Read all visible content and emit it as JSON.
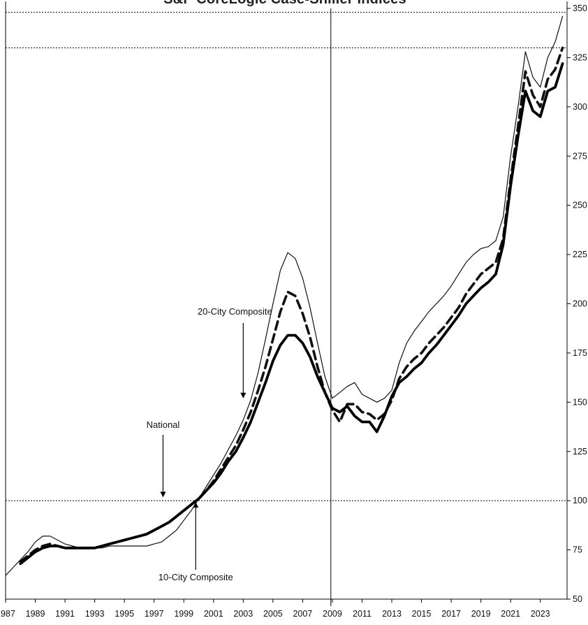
{
  "chart_data": {
    "type": "line",
    "title": "S&P CoreLogic Case-Shiller Indices",
    "ylim": [
      50,
      350
    ],
    "xlim": [
      1987.0,
      2024.8
    ],
    "y_ticks": [
      "50",
      "75",
      "100",
      "125",
      "150",
      "175",
      "200",
      "225",
      "250",
      "275",
      "300",
      "325",
      "350"
    ],
    "x_ticks": [
      "1987",
      "1989",
      "1991",
      "1993",
      "1995",
      "1997",
      "1999",
      "2001",
      "2003",
      "2005",
      "2007",
      "2009",
      "2011",
      "2013",
      "2015",
      "2017",
      "2019",
      "2021",
      "2023"
    ],
    "reference_lines": [
      100,
      330,
      348
    ],
    "vertical_line": 2008.9,
    "annotations": [
      {
        "text": "20-City Composite",
        "x": 2003.0,
        "y": 152
      },
      {
        "text": "National",
        "x": 1997.6,
        "y": 101
      },
      {
        "text": "10-City Composite",
        "x": 1999.8,
        "y": 100
      }
    ],
    "series": [
      {
        "style": "thin",
        "x": [
          1987.0,
          1987.5,
          1988.0,
          1988.5,
          1989.0,
          1989.5,
          1990.0,
          1990.5,
          1991.0,
          1991.5,
          1992.0,
          1992.5,
          1993.0,
          1993.5,
          1994.0,
          1994.5,
          1995.0,
          1995.5,
          1996.0,
          1996.5,
          1997.0,
          1997.5,
          1998.0,
          1998.5,
          1999.0,
          1999.5,
          2000.0,
          2000.5,
          2001.0,
          2001.5,
          2002.0,
          2002.5,
          2003.0,
          2003.5,
          2004.0,
          2004.5,
          2005.0,
          2005.5,
          2006.0,
          2006.5,
          2007.0,
          2007.5,
          2008.0,
          2008.5,
          2009.0,
          2009.5,
          2010.0,
          2010.5,
          2011.0,
          2011.5,
          2012.0,
          2012.5,
          2013.0,
          2013.5,
          2014.0,
          2014.5,
          2015.0,
          2015.5,
          2016.0,
          2016.5,
          2017.0,
          2017.5,
          2018.0,
          2018.5,
          2019.0,
          2019.5,
          2020.0,
          2020.5,
          2021.0,
          2021.5,
          2022.0,
          2022.5,
          2023.0,
          2023.5,
          2024.0,
          2024.5
        ],
        "values": [
          62,
          66,
          70,
          74,
          79,
          82,
          82,
          80,
          78,
          77,
          76,
          76,
          76,
          76,
          77,
          77,
          77,
          77,
          77,
          77,
          78,
          79,
          82,
          85,
          90,
          95,
          101,
          107,
          113,
          119,
          126,
          133,
          141,
          151,
          165,
          182,
          200,
          217,
          226,
          223,
          213,
          198,
          180,
          163,
          152,
          155,
          158,
          160,
          154,
          152,
          150,
          152,
          156,
          170,
          180,
          186,
          191,
          196,
          200,
          204,
          209,
          215,
          221,
          225,
          228,
          229,
          232,
          244,
          275,
          300,
          328,
          315,
          310,
          325,
          333,
          346
        ]
      },
      {
        "style": "dashed",
        "x": [
          1988.0,
          1988.5,
          1989.0,
          1989.5,
          1990.0,
          1990.5,
          1991.0,
          1991.5,
          1992.0,
          1992.5,
          1993.0,
          1993.5,
          1994.0,
          1994.5,
          1995.0,
          1995.5,
          1996.0,
          1996.5,
          1997.0,
          1997.5,
          1998.0,
          1998.5,
          1999.0,
          1999.5,
          2000.0,
          2000.5,
          2001.0,
          2001.5,
          2002.0,
          2002.5,
          2003.0,
          2003.5,
          2004.0,
          2004.5,
          2005.0,
          2005.5,
          2006.0,
          2006.5,
          2007.0,
          2007.5,
          2008.0,
          2008.5,
          2009.0,
          2009.5,
          2010.0,
          2010.5,
          2011.0,
          2011.5,
          2012.0,
          2012.5,
          2013.0,
          2013.5,
          2014.0,
          2014.5,
          2015.0,
          2015.5,
          2016.0,
          2016.5,
          2017.0,
          2017.5,
          2018.0,
          2018.5,
          2019.0,
          2019.5,
          2020.0,
          2020.5,
          2021.0,
          2021.5,
          2022.0,
          2022.5,
          2023.0,
          2023.5,
          2024.0,
          2024.5
        ],
        "values": [
          69,
          72,
          75,
          77,
          78,
          77,
          76,
          76,
          76,
          76,
          76,
          77,
          78,
          79,
          80,
          81,
          82,
          83,
          85,
          87,
          89,
          92,
          95,
          98,
          101,
          105,
          110,
          116,
          122,
          128,
          136,
          145,
          156,
          168,
          182,
          196,
          206,
          204,
          195,
          183,
          168,
          155,
          146,
          140,
          149,
          149,
          145,
          144,
          141,
          144,
          151,
          162,
          168,
          172,
          175,
          180,
          184,
          188,
          193,
          198,
          205,
          210,
          215,
          218,
          221,
          233,
          263,
          290,
          318,
          306,
          300,
          314,
          319,
          330
        ]
      },
      {
        "style": "thick",
        "x": [
          1988.0,
          1988.5,
          1989.0,
          1989.5,
          1990.0,
          1990.5,
          1991.0,
          1991.5,
          1992.0,
          1992.5,
          1993.0,
          1993.5,
          1994.0,
          1994.5,
          1995.0,
          1995.5,
          1996.0,
          1996.5,
          1997.0,
          1997.5,
          1998.0,
          1998.5,
          1999.0,
          1999.5,
          2000.0,
          2000.5,
          2001.0,
          2001.5,
          2002.0,
          2002.5,
          2003.0,
          2003.5,
          2004.0,
          2004.5,
          2005.0,
          2005.5,
          2006.0,
          2006.5,
          2007.0,
          2007.5,
          2008.0,
          2008.5,
          2009.0,
          2009.5,
          2010.0,
          2010.5,
          2011.0,
          2011.5,
          2012.0,
          2012.5,
          2013.0,
          2013.5,
          2014.0,
          2014.5,
          2015.0,
          2015.5,
          2016.0,
          2016.5,
          2017.0,
          2017.5,
          2018.0,
          2018.5,
          2019.0,
          2019.5,
          2020.0,
          2020.5,
          2021.0,
          2021.5,
          2022.0,
          2022.5,
          2023.0,
          2023.5,
          2024.0,
          2024.5
        ],
        "values": [
          68,
          71,
          74,
          76,
          77,
          77,
          76,
          76,
          76,
          76,
          76,
          77,
          78,
          79,
          80,
          81,
          82,
          83,
          85,
          87,
          89,
          92,
          95,
          98,
          101,
          105,
          109,
          114,
          120,
          125,
          132,
          140,
          150,
          160,
          171,
          179,
          184,
          184,
          180,
          173,
          163,
          155,
          147,
          145,
          148,
          143,
          140,
          140,
          135,
          143,
          153,
          160,
          163,
          167,
          170,
          175,
          179,
          184,
          189,
          194,
          200,
          204,
          208,
          211,
          215,
          230,
          260,
          285,
          308,
          298,
          295,
          308,
          310,
          322
        ]
      }
    ]
  }
}
